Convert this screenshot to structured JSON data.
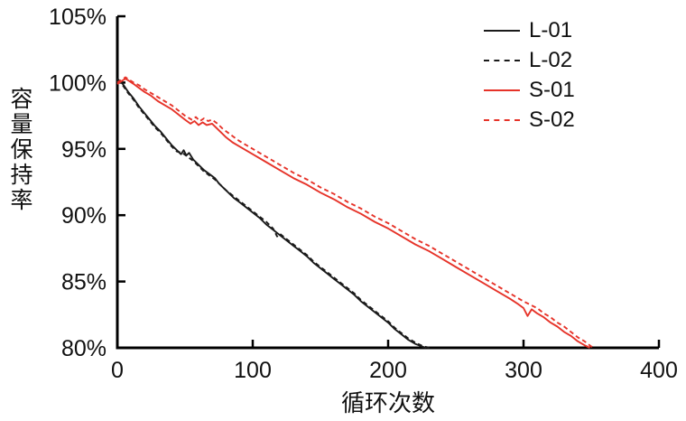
{
  "figure": {
    "y_axis_label": "容量保持率",
    "x_axis_label": "循环次数"
  },
  "chart_data": {
    "type": "line",
    "title": "",
    "xlabel": "循环次数",
    "ylabel": "容量保持率",
    "xlim": [
      0,
      400
    ],
    "ylim": [
      80,
      105
    ],
    "x_ticks": [
      0,
      100,
      200,
      300,
      400
    ],
    "y_ticks": [
      80,
      85,
      90,
      95,
      100,
      105
    ],
    "y_tick_suffix": "%",
    "grid": false,
    "legend_position": "top-right",
    "axis_color": "#000000",
    "series": [
      {
        "name": "L-01",
        "color": "#1a1a1a",
        "style": "solid",
        "points": [
          [
            0,
            100.3
          ],
          [
            4,
            99.9
          ],
          [
            8,
            99.3
          ],
          [
            12,
            98.8
          ],
          [
            16,
            98.2
          ],
          [
            20,
            97.7
          ],
          [
            24,
            97.2
          ],
          [
            28,
            96.7
          ],
          [
            32,
            96.3
          ],
          [
            36,
            95.8
          ],
          [
            40,
            95.3
          ],
          [
            44,
            94.9
          ],
          [
            47,
            94.6
          ],
          [
            49,
            94.9
          ],
          [
            51,
            94.5
          ],
          [
            53,
            94.7
          ],
          [
            56,
            94.2
          ],
          [
            60,
            93.8
          ],
          [
            64,
            93.4
          ],
          [
            68,
            93.1
          ],
          [
            72,
            92.8
          ],
          [
            75,
            92.4
          ],
          [
            78,
            92.1
          ],
          [
            82,
            91.7
          ],
          [
            86,
            91.3
          ],
          [
            90,
            91.0
          ],
          [
            95,
            90.6
          ],
          [
            100,
            90.2
          ],
          [
            105,
            89.8
          ],
          [
            110,
            89.3
          ],
          [
            115,
            88.9
          ],
          [
            120,
            88.5
          ],
          [
            125,
            88.1
          ],
          [
            130,
            87.7
          ],
          [
            135,
            87.3
          ],
          [
            140,
            86.9
          ],
          [
            145,
            86.4
          ],
          [
            150,
            86.0
          ],
          [
            155,
            85.6
          ],
          [
            160,
            85.2
          ],
          [
            165,
            84.8
          ],
          [
            170,
            84.4
          ],
          [
            175,
            84.0
          ],
          [
            180,
            83.5
          ],
          [
            185,
            83.1
          ],
          [
            190,
            82.7
          ],
          [
            195,
            82.3
          ],
          [
            200,
            81.9
          ],
          [
            205,
            81.4
          ],
          [
            210,
            81.0
          ],
          [
            215,
            80.6
          ],
          [
            220,
            80.3
          ],
          [
            225,
            80.1
          ],
          [
            228,
            80.0
          ]
        ]
      },
      {
        "name": "L-02",
        "color": "#1a1a1a",
        "style": "dashed",
        "points": [
          [
            0,
            100.2
          ],
          [
            4,
            99.8
          ],
          [
            8,
            99.2
          ],
          [
            12,
            98.7
          ],
          [
            16,
            98.1
          ],
          [
            20,
            97.6
          ],
          [
            24,
            97.1
          ],
          [
            28,
            96.6
          ],
          [
            32,
            96.2
          ],
          [
            36,
            95.7
          ],
          [
            40,
            95.2
          ],
          [
            44,
            94.8
          ],
          [
            48,
            94.7
          ],
          [
            52,
            94.4
          ],
          [
            56,
            94.1
          ],
          [
            60,
            93.7
          ],
          [
            64,
            93.3
          ],
          [
            68,
            93.0
          ],
          [
            72,
            92.7
          ],
          [
            76,
            92.3
          ],
          [
            80,
            91.9
          ],
          [
            85,
            91.5
          ],
          [
            90,
            91.1
          ],
          [
            95,
            90.7
          ],
          [
            100,
            90.3
          ],
          [
            105,
            89.9
          ],
          [
            110,
            89.5
          ],
          [
            115,
            89.0
          ],
          [
            118,
            88.4
          ],
          [
            120,
            88.6
          ],
          [
            125,
            88.2
          ],
          [
            130,
            87.8
          ],
          [
            135,
            87.4
          ],
          [
            140,
            87.0
          ],
          [
            145,
            86.5
          ],
          [
            150,
            86.1
          ],
          [
            155,
            85.7
          ],
          [
            160,
            85.3
          ],
          [
            165,
            84.9
          ],
          [
            170,
            84.5
          ],
          [
            175,
            84.1
          ],
          [
            180,
            83.6
          ],
          [
            185,
            83.2
          ],
          [
            190,
            82.8
          ],
          [
            195,
            82.4
          ],
          [
            200,
            82.0
          ],
          [
            205,
            81.5
          ],
          [
            210,
            81.1
          ],
          [
            215,
            80.7
          ],
          [
            220,
            80.4
          ],
          [
            226,
            80.1
          ],
          [
            231,
            80.0
          ]
        ]
      },
      {
        "name": "S-01",
        "color": "#e63329",
        "style": "solid",
        "points": [
          [
            0,
            99.9
          ],
          [
            3,
            100.1
          ],
          [
            6,
            100.3
          ],
          [
            9,
            100.1
          ],
          [
            12,
            99.9
          ],
          [
            16,
            99.6
          ],
          [
            20,
            99.3
          ],
          [
            25,
            99.0
          ],
          [
            30,
            98.6
          ],
          [
            35,
            98.3
          ],
          [
            40,
            98.0
          ],
          [
            45,
            97.6
          ],
          [
            50,
            97.2
          ],
          [
            54,
            96.9
          ],
          [
            57,
            97.1
          ],
          [
            60,
            96.8
          ],
          [
            63,
            97.0
          ],
          [
            66,
            96.8
          ],
          [
            70,
            96.9
          ],
          [
            73,
            96.6
          ],
          [
            76,
            96.3
          ],
          [
            80,
            95.9
          ],
          [
            85,
            95.5
          ],
          [
            90,
            95.2
          ],
          [
            95,
            94.9
          ],
          [
            100,
            94.6
          ],
          [
            110,
            94.0
          ],
          [
            120,
            93.4
          ],
          [
            130,
            92.8
          ],
          [
            140,
            92.3
          ],
          [
            150,
            91.7
          ],
          [
            160,
            91.2
          ],
          [
            170,
            90.6
          ],
          [
            180,
            90.1
          ],
          [
            190,
            89.5
          ],
          [
            200,
            89.0
          ],
          [
            210,
            88.4
          ],
          [
            220,
            87.8
          ],
          [
            230,
            87.3
          ],
          [
            240,
            86.7
          ],
          [
            250,
            86.1
          ],
          [
            260,
            85.5
          ],
          [
            270,
            84.9
          ],
          [
            280,
            84.3
          ],
          [
            290,
            83.7
          ],
          [
            296,
            83.3
          ],
          [
            300,
            83.0
          ],
          [
            303,
            82.4
          ],
          [
            306,
            82.9
          ],
          [
            310,
            82.6
          ],
          [
            315,
            82.3
          ],
          [
            320,
            81.9
          ],
          [
            325,
            81.6
          ],
          [
            330,
            81.2
          ],
          [
            335,
            80.9
          ],
          [
            340,
            80.5
          ],
          [
            345,
            80.2
          ],
          [
            349,
            80.0
          ]
        ]
      },
      {
        "name": "S-02",
        "color": "#e63329",
        "style": "dashed",
        "points": [
          [
            0,
            100.0
          ],
          [
            3,
            100.2
          ],
          [
            6,
            100.4
          ],
          [
            9,
            100.2
          ],
          [
            12,
            100.0
          ],
          [
            16,
            99.8
          ],
          [
            20,
            99.5
          ],
          [
            25,
            99.2
          ],
          [
            30,
            98.9
          ],
          [
            35,
            98.6
          ],
          [
            40,
            98.3
          ],
          [
            45,
            97.9
          ],
          [
            50,
            97.5
          ],
          [
            55,
            97.2
          ],
          [
            58,
            97.4
          ],
          [
            61,
            97.1
          ],
          [
            64,
            97.3
          ],
          [
            67,
            97.1
          ],
          [
            70,
            97.2
          ],
          [
            74,
            96.9
          ],
          [
            78,
            96.5
          ],
          [
            82,
            96.2
          ],
          [
            86,
            95.9
          ],
          [
            90,
            95.6
          ],
          [
            95,
            95.3
          ],
          [
            100,
            95.0
          ],
          [
            110,
            94.4
          ],
          [
            120,
            93.8
          ],
          [
            130,
            93.2
          ],
          [
            140,
            92.7
          ],
          [
            150,
            92.1
          ],
          [
            160,
            91.6
          ],
          [
            170,
            91.0
          ],
          [
            180,
            90.5
          ],
          [
            190,
            89.9
          ],
          [
            200,
            89.4
          ],
          [
            210,
            88.8
          ],
          [
            220,
            88.2
          ],
          [
            230,
            87.7
          ],
          [
            240,
            87.1
          ],
          [
            250,
            86.5
          ],
          [
            260,
            85.9
          ],
          [
            270,
            85.3
          ],
          [
            280,
            84.7
          ],
          [
            290,
            84.1
          ],
          [
            300,
            83.5
          ],
          [
            310,
            83.0
          ],
          [
            315,
            82.6
          ],
          [
            320,
            82.3
          ],
          [
            325,
            81.9
          ],
          [
            330,
            81.6
          ],
          [
            335,
            81.2
          ],
          [
            340,
            80.8
          ],
          [
            345,
            80.5
          ],
          [
            350,
            80.1
          ],
          [
            353,
            80.0
          ]
        ]
      }
    ]
  }
}
